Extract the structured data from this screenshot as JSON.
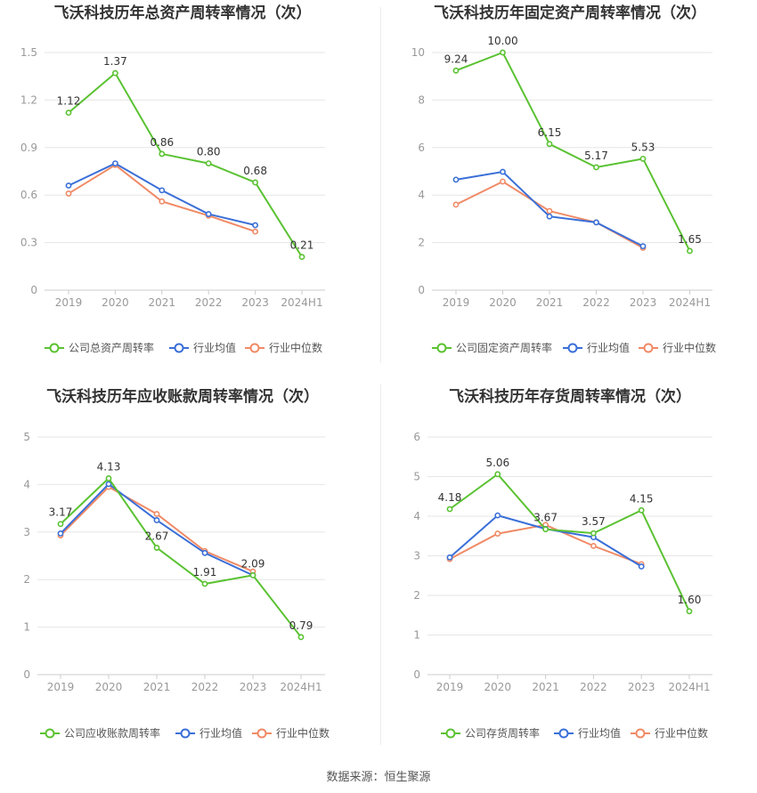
{
  "colors": {
    "company": "#5ac232",
    "avg": "#3a6fd8",
    "median": "#f08a66",
    "grid": "#e6e6e6",
    "axis": "#999999",
    "text": "#333333"
  },
  "legend_labels": [
    "行业均值",
    "行业中位数"
  ],
  "source": "数据来源：恒生聚源",
  "chart_data": [
    {
      "type": "line",
      "title": "飞沃科技历年总资产周转率情况（次）",
      "categories": [
        "2019",
        "2020",
        "2021",
        "2022",
        "2023",
        "2024H1"
      ],
      "ylim": [
        0,
        1.5
      ],
      "yticks": [
        "0",
        "0.3",
        "0.6",
        "0.9",
        "1.2",
        "1.5"
      ],
      "series": [
        {
          "name": "公司总资产周转率",
          "values": [
            1.12,
            1.37,
            0.86,
            0.8,
            0.68,
            0.21
          ],
          "labels": [
            "1.12",
            "1.37",
            "0.86",
            "0.80",
            "0.68",
            "0.21"
          ]
        },
        {
          "name": "行业均值",
          "values": [
            0.66,
            0.8,
            0.63,
            0.48,
            0.41,
            null
          ]
        },
        {
          "name": "行业中位数",
          "values": [
            0.61,
            0.79,
            0.56,
            0.47,
            0.37,
            null
          ]
        }
      ]
    },
    {
      "type": "line",
      "title": "飞沃科技历年固定资产周转率情况（次）",
      "categories": [
        "2019",
        "2020",
        "2021",
        "2022",
        "2023",
        "2024H1"
      ],
      "ylim": [
        0,
        10
      ],
      "yticks": [
        "0",
        "2",
        "4",
        "6",
        "8",
        "10"
      ],
      "series": [
        {
          "name": "公司固定资产周转率",
          "values": [
            9.24,
            10.0,
            6.15,
            5.17,
            5.53,
            1.65
          ],
          "labels": [
            "9.24",
            "10.00",
            "6.15",
            "5.17",
            "5.53",
            "1.65"
          ]
        },
        {
          "name": "行业均值",
          "values": [
            4.65,
            4.98,
            3.1,
            2.85,
            1.85,
            null
          ]
        },
        {
          "name": "行业中位数",
          "values": [
            3.6,
            4.57,
            3.33,
            2.85,
            1.78,
            null
          ]
        }
      ]
    },
    {
      "type": "line",
      "title": "飞沃科技历年应收账款周转率情况（次）",
      "categories": [
        "2019",
        "2020",
        "2021",
        "2022",
        "2023",
        "2024H1"
      ],
      "ylim": [
        0,
        5
      ],
      "yticks": [
        "0",
        "1",
        "2",
        "3",
        "4",
        "5"
      ],
      "series": [
        {
          "name": "公司应收账款周转率",
          "values": [
            3.17,
            4.13,
            2.67,
            1.91,
            2.09,
            0.79
          ],
          "labels": [
            "3.17",
            "4.13",
            "2.67",
            "1.91",
            "2.09",
            "0.79"
          ]
        },
        {
          "name": "行业均值",
          "values": [
            2.97,
            4.01,
            3.25,
            2.56,
            2.09,
            null
          ]
        },
        {
          "name": "行业中位数",
          "values": [
            2.93,
            3.95,
            3.38,
            2.6,
            2.17,
            null
          ]
        }
      ]
    },
    {
      "type": "line",
      "title": "飞沃科技历年存货周转率情况（次）",
      "categories": [
        "2019",
        "2020",
        "2021",
        "2022",
        "2023",
        "2024H1"
      ],
      "ylim": [
        0,
        6
      ],
      "yticks": [
        "0",
        "1",
        "2",
        "3",
        "4",
        "5",
        "6"
      ],
      "series": [
        {
          "name": "公司存货周转率",
          "values": [
            4.18,
            5.06,
            3.67,
            3.57,
            4.15,
            1.6
          ],
          "labels": [
            "4.18",
            "5.06",
            "3.67",
            "3.57",
            "4.15",
            "1.60"
          ]
        },
        {
          "name": "行业均值",
          "values": [
            2.96,
            4.02,
            3.68,
            3.47,
            2.73,
            null
          ]
        },
        {
          "name": "行业中位数",
          "values": [
            2.92,
            3.56,
            3.78,
            3.25,
            2.79,
            null
          ]
        }
      ]
    }
  ]
}
